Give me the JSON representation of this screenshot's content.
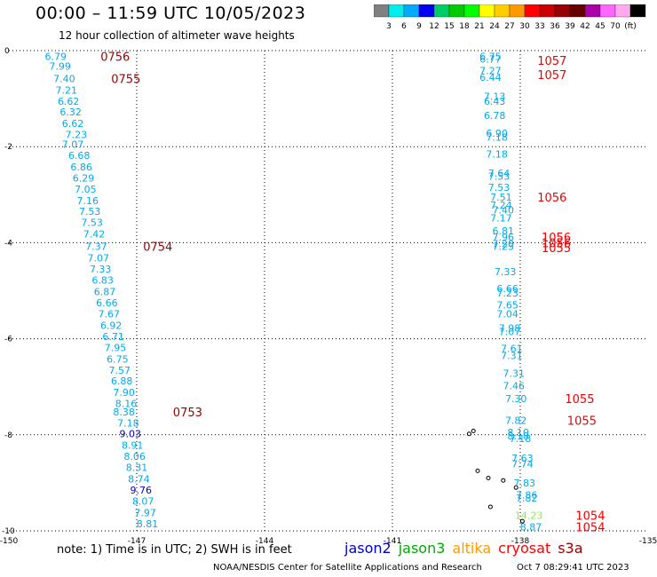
{
  "header": {
    "title": "00:00 – 11:59 UTC 10/05/2023",
    "subtitle": "12 hour collection of altimeter wave heights"
  },
  "footer": {
    "note": "note:  1) Time is in UTC;  2) SWH is in feet",
    "credit": "NOAA/NESDIS Center for Satellite Applications and Research",
    "timestamp": "Oct  7 08:29:41 UTC 2023"
  },
  "satellites": [
    {
      "name": "jason2",
      "color": "#0000cc"
    },
    {
      "name": "jason3",
      "color": "#00aa00"
    },
    {
      "name": "altika",
      "color": "#ff9900"
    },
    {
      "name": "cryosat",
      "color": "#ff0000"
    },
    {
      "name": "s3a",
      "color": "#990000"
    }
  ],
  "colorbar": {
    "colors": [
      "#808080",
      "#00eeee",
      "#00aaff",
      "#0000ee",
      "#00cc66",
      "#00cc00",
      "#00ff00",
      "#ffff00",
      "#ffcc00",
      "#ff9900",
      "#ff0000",
      "#cc0000",
      "#990000",
      "#660000",
      "#aa00aa",
      "#ff66ff",
      "#ffaaee",
      "#000000"
    ],
    "labels": [
      "3",
      "6",
      "9",
      "12",
      "15",
      "18",
      "21",
      "24",
      "27",
      "30",
      "33",
      "36",
      "39",
      "42",
      "45",
      "70",
      "(ft)"
    ]
  },
  "chart_data": {
    "type": "scatter",
    "xlim": [
      -150,
      -135
    ],
    "ylim": [
      -10,
      0
    ],
    "xticks": [
      {
        "v": -150,
        "label": "-150"
      },
      {
        "v": -147,
        "label": "-147"
      },
      {
        "v": -144,
        "label": "-144"
      },
      {
        "v": -141,
        "label": "-141"
      },
      {
        "v": -138,
        "label": "-138"
      },
      {
        "v": -135,
        "label": "-135"
      }
    ],
    "yticks": [
      {
        "v": 0,
        "label": "0"
      },
      {
        "v": -2,
        "label": "-2"
      },
      {
        "v": -4,
        "label": "-4"
      },
      {
        "v": -6,
        "label": "-6"
      },
      {
        "v": -8,
        "label": "-8"
      },
      {
        "v": -10,
        "label": "-10"
      }
    ],
    "grid": true,
    "tracks": [
      {
        "name": "west-track",
        "color": "#00aaee",
        "points": [
          {
            "lon": -148.9,
            "lat": -0.12,
            "v": "6.79"
          },
          {
            "lon": -148.8,
            "lat": -0.32,
            "v": "7.99"
          },
          {
            "lon": -148.7,
            "lat": -0.58,
            "v": "7.40"
          },
          {
            "lon": -148.65,
            "lat": -0.82,
            "v": "7.21"
          },
          {
            "lon": -148.6,
            "lat": -1.05,
            "v": "6.62"
          },
          {
            "lon": -148.55,
            "lat": -1.28,
            "v": "6.32"
          },
          {
            "lon": -148.5,
            "lat": -1.52,
            "v": "6.62"
          },
          {
            "lon": -148.42,
            "lat": -1.75,
            "v": "7.23"
          },
          {
            "lon": -148.5,
            "lat": -1.95,
            "v": "7.07"
          },
          {
            "lon": -148.35,
            "lat": -2.18,
            "v": "6.68"
          },
          {
            "lon": -148.3,
            "lat": -2.42,
            "v": "6.86"
          },
          {
            "lon": -148.25,
            "lat": -2.65,
            "v": "6.29"
          },
          {
            "lon": -148.2,
            "lat": -2.88,
            "v": "7.05"
          },
          {
            "lon": -148.15,
            "lat": -3.12,
            "v": "7.16"
          },
          {
            "lon": -148.1,
            "lat": -3.35,
            "v": "7.53"
          },
          {
            "lon": -148.05,
            "lat": -3.58,
            "v": "7.53"
          },
          {
            "lon": -148.0,
            "lat": -3.82,
            "v": "7.42"
          },
          {
            "lon": -147.95,
            "lat": -4.08,
            "v": "7.37"
          },
          {
            "lon": -147.9,
            "lat": -4.32,
            "v": "7.07"
          },
          {
            "lon": -147.85,
            "lat": -4.55,
            "v": "7.33"
          },
          {
            "lon": -147.8,
            "lat": -4.78,
            "v": "6.83"
          },
          {
            "lon": -147.75,
            "lat": -5.02,
            "v": "6.87"
          },
          {
            "lon": -147.7,
            "lat": -5.25,
            "v": "6.66"
          },
          {
            "lon": -147.65,
            "lat": -5.48,
            "v": "7.67"
          },
          {
            "lon": -147.6,
            "lat": -5.72,
            "v": "6.92"
          },
          {
            "lon": -147.55,
            "lat": -5.95,
            "v": "6.71"
          },
          {
            "lon": -147.5,
            "lat": -6.18,
            "v": "7.95"
          },
          {
            "lon": -147.45,
            "lat": -6.42,
            "v": "6.75"
          },
          {
            "lon": -147.4,
            "lat": -6.65,
            "v": "7.57"
          },
          {
            "lon": -147.35,
            "lat": -6.88,
            "v": "6.88"
          },
          {
            "lon": -147.3,
            "lat": -7.12,
            "v": "7.90"
          },
          {
            "lon": -147.25,
            "lat": -7.35,
            "v": "8.16"
          },
          {
            "lon": -147.3,
            "lat": -7.52,
            "v": "8.38"
          },
          {
            "lon": -147.2,
            "lat": -7.75,
            "v": "7.18"
          },
          {
            "lon": -147.15,
            "lat": -7.98,
            "v": "9.03",
            "color": "#0000cc"
          },
          {
            "lon": -147.1,
            "lat": -8.22,
            "v": "8.91"
          },
          {
            "lon": -147.05,
            "lat": -8.45,
            "v": "8.06"
          },
          {
            "lon": -147.0,
            "lat": -8.68,
            "v": "8.31"
          },
          {
            "lon": -146.95,
            "lat": -8.92,
            "v": "8.74"
          },
          {
            "lon": -146.9,
            "lat": -9.15,
            "v": "9.76",
            "color": "#0000cc"
          },
          {
            "lon": -146.85,
            "lat": -9.38,
            "v": "8.07"
          },
          {
            "lon": -146.8,
            "lat": -9.62,
            "v": "7.97"
          },
          {
            "lon": -146.75,
            "lat": -9.85,
            "v": "8.81"
          }
        ]
      },
      {
        "name": "east-track",
        "color": "#00aaee",
        "points": [
          {
            "lon": -138.7,
            "lat": -0.12,
            "v": "6.75"
          },
          {
            "lon": -138.7,
            "lat": -0.18,
            "v": "6.77"
          },
          {
            "lon": -138.7,
            "lat": -0.42,
            "v": "7.27"
          },
          {
            "lon": -138.7,
            "lat": -0.55,
            "v": "6.44"
          },
          {
            "lon": -138.6,
            "lat": -0.95,
            "v": "7.13"
          },
          {
            "lon": -138.6,
            "lat": -1.05,
            "v": "6.43"
          },
          {
            "lon": -138.6,
            "lat": -1.35,
            "v": "6.78"
          },
          {
            "lon": -138.55,
            "lat": -1.72,
            "v": "6.90"
          },
          {
            "lon": -138.55,
            "lat": -1.8,
            "v": "7.18"
          },
          {
            "lon": -138.55,
            "lat": -2.15,
            "v": "7.18"
          },
          {
            "lon": -138.5,
            "lat": -2.55,
            "v": "7.64"
          },
          {
            "lon": -138.5,
            "lat": -2.62,
            "v": "7.53"
          },
          {
            "lon": -138.5,
            "lat": -2.85,
            "v": "7.53"
          },
          {
            "lon": -138.45,
            "lat": -3.05,
            "v": "7.51"
          },
          {
            "lon": -138.45,
            "lat": -3.22,
            "v": "7.24"
          },
          {
            "lon": -138.4,
            "lat": -3.32,
            "v": "7.40"
          },
          {
            "lon": -138.45,
            "lat": -3.48,
            "v": "7.17"
          },
          {
            "lon": -138.4,
            "lat": -3.75,
            "v": "6.81"
          },
          {
            "lon": -138.4,
            "lat": -3.88,
            "v": "7.96"
          },
          {
            "lon": -138.4,
            "lat": -4.02,
            "v": "7.20"
          },
          {
            "lon": -138.4,
            "lat": -4.08,
            "v": "7.23"
          },
          {
            "lon": -138.35,
            "lat": -4.6,
            "v": "7.33"
          },
          {
            "lon": -138.3,
            "lat": -4.95,
            "v": "6.66"
          },
          {
            "lon": -138.3,
            "lat": -5.05,
            "v": "7.23"
          },
          {
            "lon": -138.3,
            "lat": -5.3,
            "v": "7.65"
          },
          {
            "lon": -138.3,
            "lat": -5.48,
            "v": "7.04"
          },
          {
            "lon": -138.25,
            "lat": -5.78,
            "v": "7.98"
          },
          {
            "lon": -138.25,
            "lat": -5.85,
            "v": "7.07"
          },
          {
            "lon": -138.2,
            "lat": -6.2,
            "v": "7.61"
          },
          {
            "lon": -138.2,
            "lat": -6.35,
            "v": "7.31"
          },
          {
            "lon": -138.15,
            "lat": -6.72,
            "v": "7.31"
          },
          {
            "lon": -138.15,
            "lat": -6.98,
            "v": "7.46"
          },
          {
            "lon": -138.1,
            "lat": -7.25,
            "v": "7.30"
          },
          {
            "lon": -138.1,
            "lat": -7.7,
            "v": "7.82"
          },
          {
            "lon": -138.05,
            "lat": -7.95,
            "v": "8.10"
          },
          {
            "lon": -138.05,
            "lat": -8.02,
            "v": "8.10"
          },
          {
            "lon": -138.0,
            "lat": -8.08,
            "v": "7.18"
          },
          {
            "lon": -137.95,
            "lat": -8.48,
            "v": "7.63"
          },
          {
            "lon": -137.95,
            "lat": -8.6,
            "v": "7.74"
          },
          {
            "lon": -137.9,
            "lat": -9.0,
            "v": "7.83"
          },
          {
            "lon": -137.85,
            "lat": -9.25,
            "v": "7.86"
          },
          {
            "lon": -137.85,
            "lat": -9.32,
            "v": "7.82"
          },
          {
            "lon": -137.8,
            "lat": -9.68,
            "v": "14.23",
            "color": "#88ee44"
          },
          {
            "lon": -137.75,
            "lat": -9.92,
            "v": "8.87"
          }
        ]
      }
    ],
    "time_labels": [
      {
        "lon": -147.85,
        "lat": -0.12,
        "t": "0756",
        "color": "#990000"
      },
      {
        "lon": -147.6,
        "lat": -0.58,
        "t": "0755",
        "color": "#990000"
      },
      {
        "lon": -146.85,
        "lat": -4.08,
        "t": "0754",
        "color": "#990000"
      },
      {
        "lon": -146.15,
        "lat": -7.52,
        "t": "0753",
        "color": "#990000"
      },
      {
        "lon": -137.6,
        "lat": -0.2,
        "t": "1057",
        "color": "#ee0000"
      },
      {
        "lon": -137.6,
        "lat": -0.5,
        "t": "1057",
        "color": "#ee0000"
      },
      {
        "lon": -137.6,
        "lat": -3.05,
        "t": "1056",
        "color": "#ee0000"
      },
      {
        "lon": -137.5,
        "lat": -3.88,
        "t": "1056",
        "color": "#ee0000"
      },
      {
        "lon": -137.5,
        "lat": -4.0,
        "t": "1056",
        "color": "#ee0000"
      },
      {
        "lon": -137.5,
        "lat": -4.1,
        "t": "1055",
        "color": "#ee0000"
      },
      {
        "lon": -136.95,
        "lat": -7.25,
        "t": "1055",
        "color": "#ee0000"
      },
      {
        "lon": -136.9,
        "lat": -7.7,
        "t": "1055",
        "color": "#ee0000"
      },
      {
        "lon": -136.7,
        "lat": -9.68,
        "t": "1054",
        "color": "#ee0000"
      },
      {
        "lon": -136.7,
        "lat": -9.92,
        "t": "1054",
        "color": "#ee0000"
      }
    ],
    "islands": [
      {
        "lon": -139.2,
        "lat": -7.98
      },
      {
        "lon": -139.1,
        "lat": -7.92
      },
      {
        "lon": -139.0,
        "lat": -8.75
      },
      {
        "lon": -138.75,
        "lat": -8.9
      },
      {
        "lon": -138.4,
        "lat": -8.95
      },
      {
        "lon": -138.7,
        "lat": -9.5
      },
      {
        "lon": -138.1,
        "lat": -9.1
      },
      {
        "lon": -137.95,
        "lat": -9.8
      }
    ]
  }
}
